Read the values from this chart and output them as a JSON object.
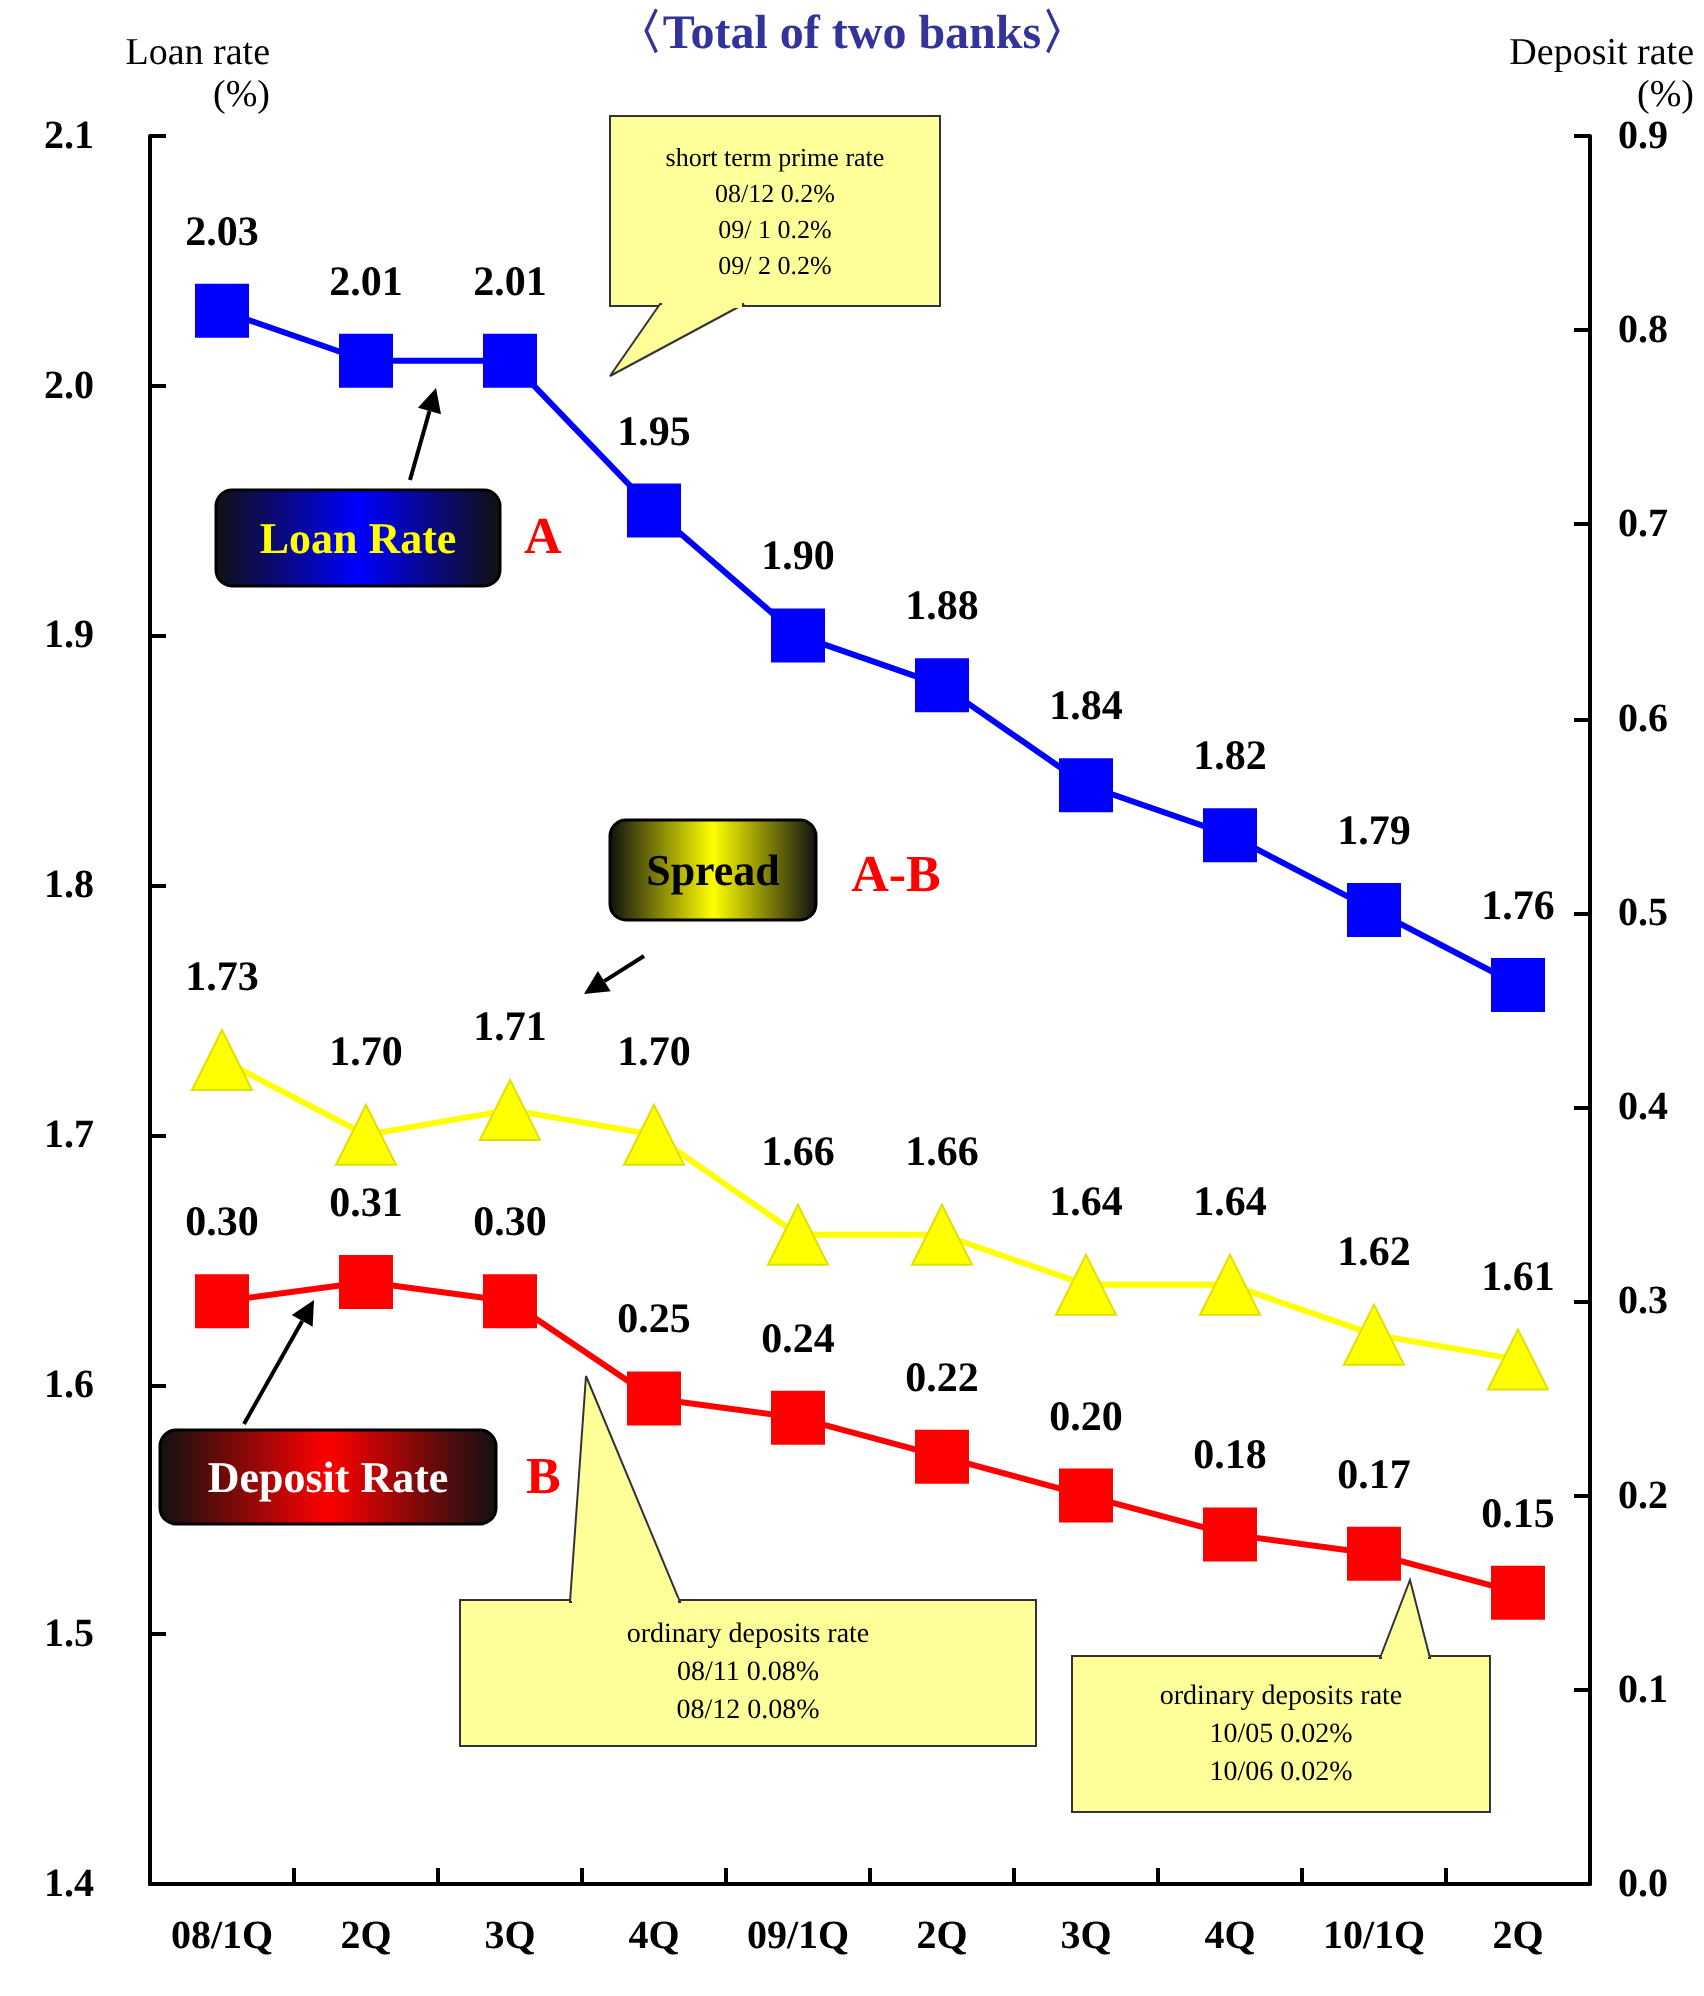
{
  "chart_data": {
    "type": "line",
    "title": "〈Total of two banks〉",
    "ylabel": "Loan rate\n(%)",
    "y2label": "Deposit rate\n(%)",
    "categories": [
      "08/1Q",
      "2Q",
      "3Q",
      "4Q",
      "09/1Q",
      "2Q",
      "3Q",
      "4Q",
      "10/1Q",
      "2Q"
    ],
    "series": [
      {
        "name": "Loan Rate",
        "color": "#0000ff",
        "marker": "square",
        "values": [
          2.03,
          2.01,
          2.01,
          1.95,
          1.9,
          1.88,
          1.84,
          1.82,
          1.79,
          1.76
        ],
        "value_labels": [
          "2.03",
          "2.01",
          "2.01",
          "1.95",
          "1.90",
          "1.88",
          "1.84",
          "1.82",
          "1.79",
          "1.76"
        ]
      },
      {
        "name": "Spread",
        "color": "#ffff00",
        "marker": "triangle",
        "values": [
          1.73,
          1.7,
          1.71,
          1.7,
          1.66,
          1.66,
          1.64,
          1.64,
          1.62,
          1.61
        ],
        "value_labels": [
          "1.73",
          "1.70",
          "1.71",
          "1.70",
          "1.66",
          "1.66",
          "1.64",
          "1.64",
          "1.62",
          "1.61"
        ]
      },
      {
        "name": "Deposit Rate",
        "color": "#ff0000",
        "marker": "square",
        "axis": "y2",
        "values": [
          0.3,
          0.31,
          0.3,
          0.25,
          0.24,
          0.22,
          0.2,
          0.18,
          0.17,
          0.15
        ],
        "value_labels": [
          "0.30",
          "0.31",
          "0.30",
          "0.25",
          "0.24",
          "0.22",
          "0.20",
          "0.18",
          "0.17",
          "0.15"
        ]
      }
    ],
    "ylim": [
      1.4,
      2.1
    ],
    "yticks": [
      1.4,
      1.5,
      1.6,
      1.7,
      1.8,
      1.9,
      {
        "value": 2,
        "label": "2.0"
      },
      2.1
    ],
    "y2lim": [
      0,
      0.9
    ],
    "y2ticks": [
      {
        "value": 0,
        "label": "0.0"
      },
      0.1,
      0.2,
      0.3,
      0.4,
      0.5,
      0.6,
      0.7,
      0.8,
      0.9
    ],
    "annotations": [
      "A",
      "A-B",
      "B",
      "short term prime rate\n08/12 0.2%\n09/ 1 0.2%\n09/ 2 0.2%",
      "ordinary deposits rate\n08/11 0.08%\n08/12 0.08%",
      "ordinary deposits rate\n10/05 0.02%\n10/06 0.02%"
    ],
    "grid": false,
    "legend": false
  }
}
